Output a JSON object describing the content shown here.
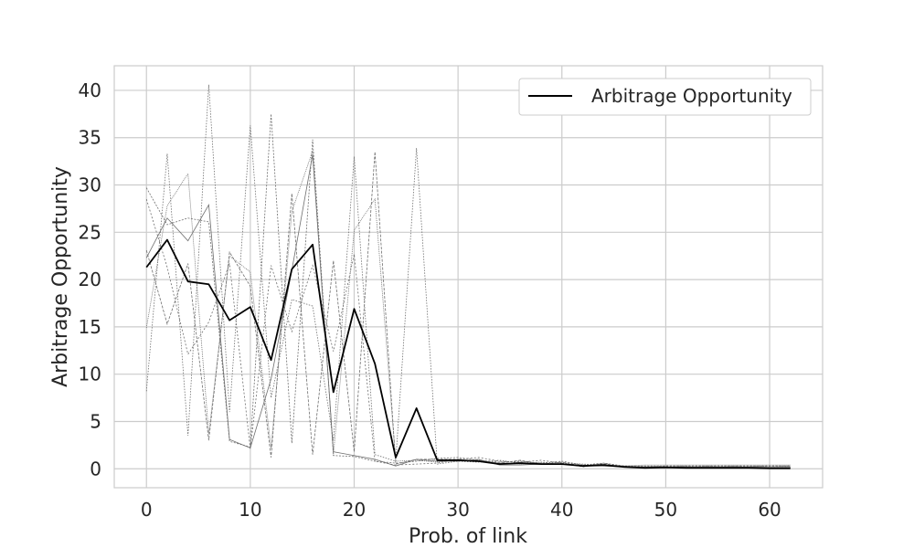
{
  "chart_data": {
    "type": "line",
    "title": "",
    "xlabel": "Prob. of link",
    "ylabel": "Arbitrage Opportunity",
    "xlim": [
      -3.1,
      65.1
    ],
    "ylim": [
      -2.0,
      42.6
    ],
    "xticks": [
      0,
      10,
      20,
      30,
      40,
      50,
      60
    ],
    "xtick_labels": [
      "0",
      "10",
      "20",
      "30",
      "40",
      "50",
      "60"
    ],
    "yticks": [
      0,
      5,
      10,
      15,
      20,
      25,
      30,
      35,
      40
    ],
    "ytick_labels": [
      "0",
      "5",
      "10",
      "15",
      "20",
      "25",
      "30",
      "35",
      "40"
    ],
    "grid": true,
    "legend": {
      "position": "top-right",
      "entries": [
        "Arbitrage Opportunity"
      ]
    },
    "colors": {
      "mean": "#000000",
      "runs": "#6e6e6e",
      "grid": "#cccccc",
      "frame": "#cccccc"
    },
    "x": [
      0,
      2,
      4,
      6,
      8,
      10,
      12,
      14,
      16,
      18,
      20,
      22,
      24,
      26,
      28,
      30,
      32,
      34,
      36,
      38,
      40,
      42,
      44,
      46,
      48,
      50,
      52,
      54,
      56,
      58,
      60,
      62
    ],
    "series": [
      {
        "name": "Arbitrage Opportunity",
        "style": "mean",
        "values": [
          21.3,
          24.2,
          19.8,
          19.5,
          15.7,
          17.1,
          11.5,
          21.1,
          23.7,
          8.1,
          16.9,
          11.1,
          1.2,
          6.4,
          0.9,
          0.9,
          0.8,
          0.5,
          0.6,
          0.5,
          0.5,
          0.3,
          0.4,
          0.2,
          0.1,
          0.15,
          0.1,
          0.1,
          0.1,
          0.1,
          0.05,
          0.05
        ]
      },
      {
        "style": "run",
        "values": [
          29.7,
          25.8,
          26.5,
          26.1,
          2.9,
          2.3,
          37.5,
          2.7,
          34.8,
          1.4,
          1.3,
          0.8,
          0.6,
          0.8,
          1.1,
          1.2,
          0.9,
          0.7,
          0.8,
          0.6,
          0.8,
          0.4,
          0.6,
          0.3,
          0.3,
          0.3,
          0.3,
          0.3,
          0.3,
          0.3,
          0.3,
          0.3
        ]
      },
      {
        "style": "run",
        "values": [
          8.2,
          33.3,
          3.5,
          40.6,
          6.0,
          36.3,
          7.5,
          17.9,
          17.2,
          3.0,
          33.0,
          1.5,
          0.8,
          33.9,
          0.5,
          0.8,
          0.7,
          0.9,
          0.6,
          0.7,
          0.6,
          0.5,
          0.4,
          0.3,
          0.2,
          0.2,
          0.2,
          0.2,
          0.2,
          0.2,
          0.2,
          0.2
        ]
      },
      {
        "style": "run",
        "values": [
          23.1,
          15.3,
          21.7,
          3.0,
          22.9,
          19.3,
          1.2,
          29.1,
          1.5,
          22.0,
          1.8,
          33.5,
          0.5,
          1.0,
          1.0,
          1.0,
          0.8,
          0.6,
          0.9,
          0.5,
          0.7,
          0.3,
          0.5,
          0.2,
          0.2,
          0.2,
          0.2,
          0.2,
          0.2,
          0.2,
          0.2,
          0.2
        ]
      },
      {
        "style": "run",
        "values": [
          14.9,
          27.8,
          31.2,
          3.7,
          22.5,
          20.8,
          2.2,
          27.2,
          33.6,
          1.5,
          25.2,
          28.5,
          0.8,
          0.9,
          0.7,
          0.9,
          0.9,
          0.6,
          0.5,
          0.6,
          0.5,
          0.4,
          0.3,
          0.3,
          0.4,
          0.4,
          0.4,
          0.4,
          0.4,
          0.4,
          0.4,
          0.4
        ]
      },
      {
        "style": "run",
        "values": [
          28.5,
          21.3,
          12.1,
          15.5,
          21.7,
          2.1,
          21.5,
          14.5,
          21.5,
          12.4,
          22.7,
          0.8,
          0.4,
          0.5,
          0.6,
          1.0,
          1.2,
          0.8,
          0.7,
          0.9,
          0.6,
          0.2,
          0.6,
          0.2,
          0.2,
          0.3,
          0.3,
          0.3,
          0.3,
          0.3,
          0.3,
          0.3
        ]
      },
      {
        "style": "run",
        "values": [
          22.3,
          26.5,
          24.1,
          27.9,
          3.1,
          2.2,
          9.5,
          21.0,
          33.2,
          1.8,
          1.4,
          1.0,
          0.3,
          1.0,
          0.8,
          0.8,
          1.0,
          0.4,
          0.4,
          0.5,
          0.5,
          0.3,
          0.3,
          0.2,
          0.2,
          0.2,
          0.2,
          0.2,
          0.2,
          0.2,
          0.2,
          0.2
        ]
      }
    ]
  }
}
